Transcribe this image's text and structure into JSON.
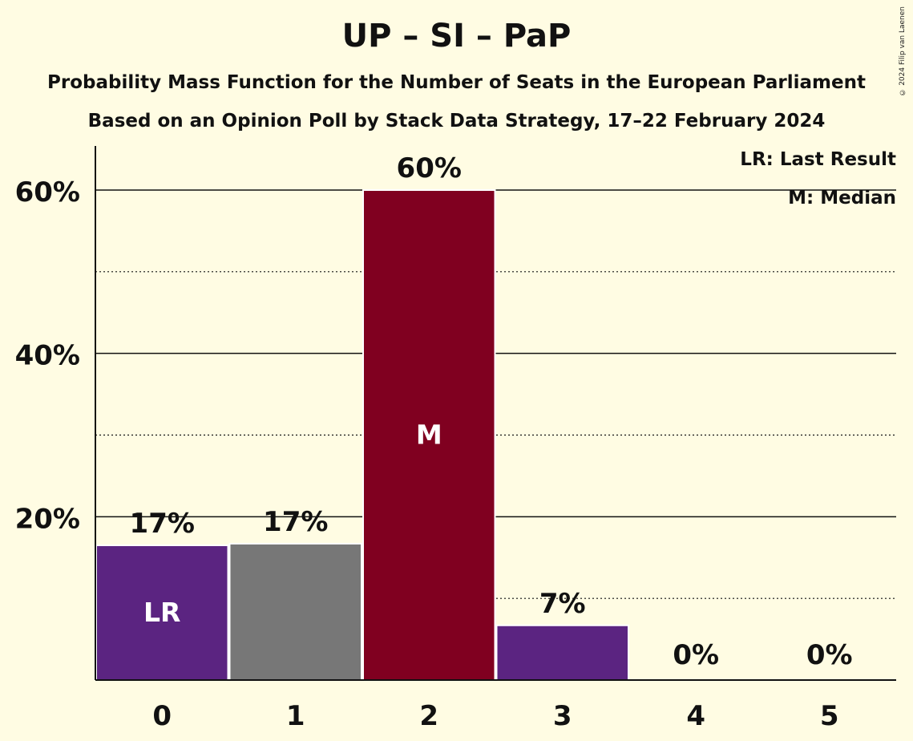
{
  "title": "UP – SI – PaP",
  "subtitle": "Probability Mass Function for the Number of Seats in the European Parliament",
  "subtitle2": "Based on an Opinion Poll by Stack Data Strategy, 17–22 February 2024",
  "copyright": "© 2024 Filip van Laenen",
  "legend": {
    "last_result": "LR: Last Result",
    "median": "M: Median"
  },
  "colors": {
    "background": "#fffce3",
    "purple": "#5b2481",
    "grey": "#777777",
    "maroon": "#800020"
  },
  "chart_data": {
    "type": "bar",
    "categories": [
      "0",
      "1",
      "2",
      "3",
      "4",
      "5"
    ],
    "values": [
      16.5,
      16.7,
      60.0,
      6.7,
      0,
      0
    ],
    "value_labels": [
      "17%",
      "17%",
      "60%",
      "7%",
      "0%",
      "0%"
    ],
    "bar_colors": [
      "#5b2481",
      "#777777",
      "#800020",
      "#5b2481",
      "#5b2481",
      "#5b2481"
    ],
    "bar_markers": [
      "LR",
      "",
      "M",
      "",
      "",
      ""
    ],
    "y_ticks": [
      20,
      40,
      60
    ],
    "y_tick_labels": [
      "20%",
      "40%",
      "60%"
    ],
    "y_minor_gridlines": [
      10,
      30,
      50
    ],
    "ylim": [
      0,
      65
    ],
    "grid": true,
    "legend_position": "top-right"
  }
}
